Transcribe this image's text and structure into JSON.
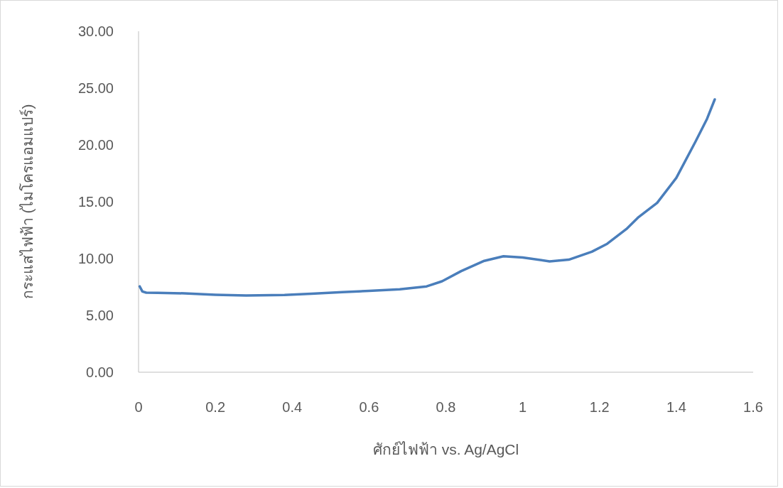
{
  "chart_data": {
    "type": "line",
    "xlabel": "ศักย์ไฟฟ้า vs. Ag/AgCl",
    "ylabel": "กระแสไฟฟ้า (ไมโครแอมแปร์)",
    "x": [
      0.003,
      0.01,
      0.02,
      0.05,
      0.12,
      0.2,
      0.28,
      0.38,
      0.45,
      0.53,
      0.6,
      0.68,
      0.75,
      0.79,
      0.84,
      0.9,
      0.95,
      1.0,
      1.07,
      1.12,
      1.18,
      1.22,
      1.27,
      1.3,
      1.35,
      1.4,
      1.45,
      1.48,
      1.5
    ],
    "series": [
      {
        "color": "#4a7ebb",
        "values": [
          7.55,
          7.1,
          7.0,
          6.98,
          6.94,
          6.82,
          6.75,
          6.8,
          6.9,
          7.05,
          7.15,
          7.3,
          7.55,
          8.0,
          8.9,
          9.8,
          10.2,
          10.1,
          9.75,
          9.9,
          10.6,
          11.3,
          12.6,
          13.6,
          14.9,
          17.1,
          20.3,
          22.3,
          24.0
        ]
      }
    ],
    "xlim": [
      0,
      1.6
    ],
    "xticks": [
      0,
      0.2,
      0.4,
      0.6,
      0.8,
      1,
      1.2,
      1.4,
      1.6
    ],
    "ylim": [
      0,
      30
    ],
    "yticks": [
      {
        "value": 0,
        "label": "0.00"
      },
      {
        "value": 5,
        "label": "5.00"
      },
      {
        "value": 10,
        "label": "10.00"
      },
      {
        "value": 15,
        "label": "15.00"
      },
      {
        "value": 20,
        "label": "20.00"
      },
      {
        "value": 25,
        "label": "25.00"
      },
      {
        "value": 30,
        "label": "30.00"
      }
    ],
    "marker": "none",
    "line_style": "solid"
  }
}
